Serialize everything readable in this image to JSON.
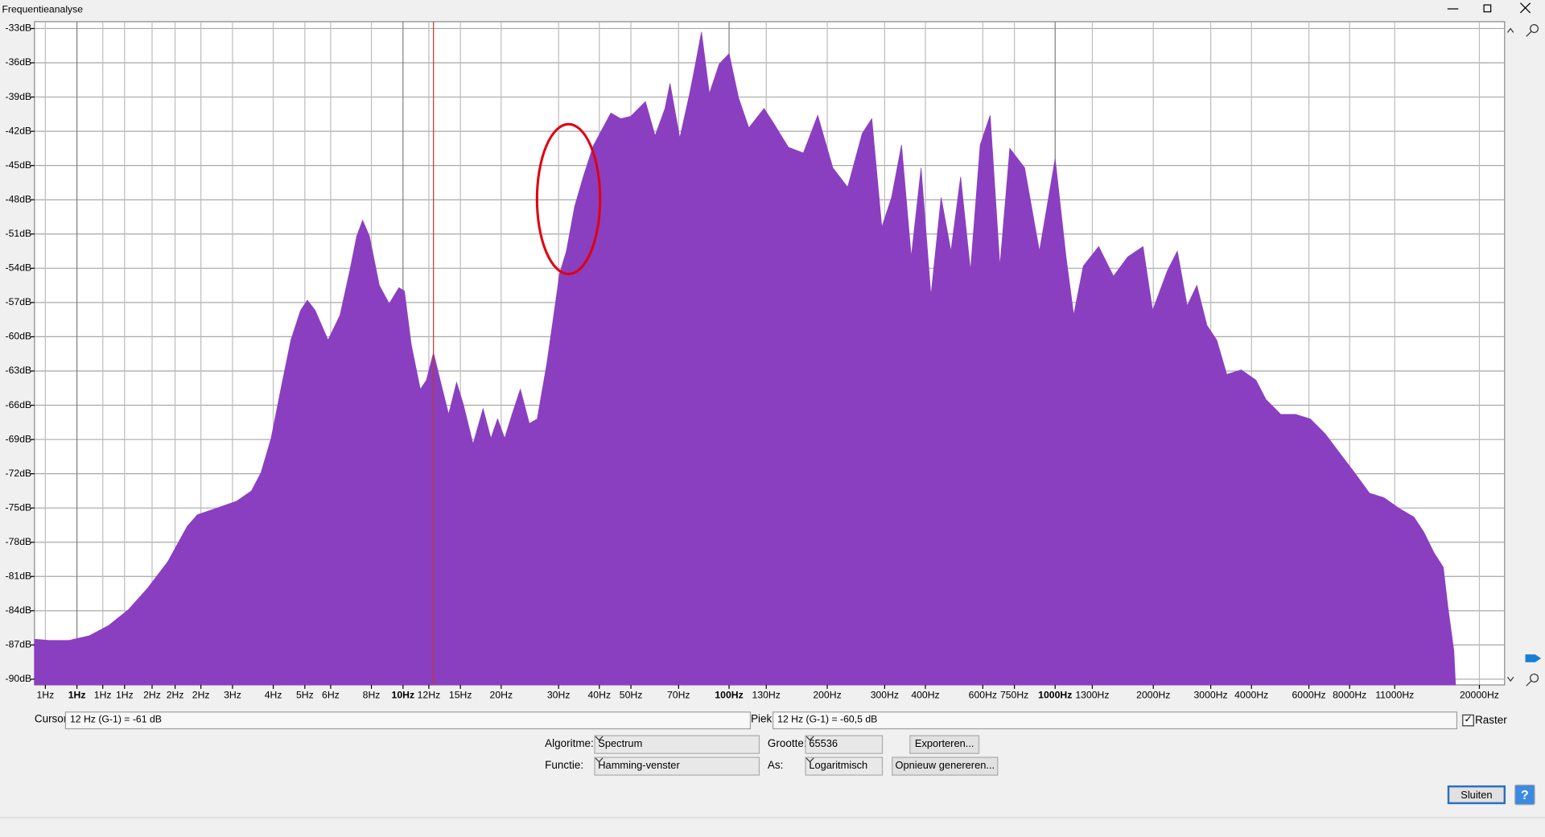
{
  "window": {
    "title": "Frequentieanalyse"
  },
  "chart_data": {
    "type": "area",
    "xscale": "log",
    "color": "#8a3fc0",
    "grid": true,
    "xlim": [
      0.741,
      23900
    ],
    "ylim": [
      -90.5,
      -32.4
    ],
    "xticks": [
      {
        "value": 0.8,
        "label": "1Hz"
      },
      {
        "value": 1,
        "label": "1Hz"
      },
      {
        "value": 1.2,
        "label": "1Hz"
      },
      {
        "value": 1.4,
        "label": "1Hz"
      },
      {
        "value": 1.7,
        "label": "2Hz"
      },
      {
        "value": 2,
        "label": "2Hz"
      },
      {
        "value": 2.4,
        "label": "2Hz"
      },
      {
        "value": 3,
        "label": "3Hz"
      },
      {
        "value": 4,
        "label": "4Hz"
      },
      {
        "value": 5,
        "label": "5Hz"
      },
      {
        "value": 6,
        "label": "6Hz"
      },
      {
        "value": 8,
        "label": "8Hz"
      },
      {
        "value": 10,
        "label": "10Hz"
      },
      {
        "value": 12,
        "label": "12Hz"
      },
      {
        "value": 15,
        "label": "15Hz"
      },
      {
        "value": 20,
        "label": "20Hz"
      },
      {
        "value": 30,
        "label": "30Hz"
      },
      {
        "value": 40,
        "label": "40Hz"
      },
      {
        "value": 50,
        "label": "50Hz"
      },
      {
        "value": 70,
        "label": "70Hz"
      },
      {
        "value": 100,
        "label": "100Hz"
      },
      {
        "value": 130,
        "label": "130Hz"
      },
      {
        "value": 200,
        "label": "200Hz"
      },
      {
        "value": 300,
        "label": "300Hz"
      },
      {
        "value": 400,
        "label": "400Hz"
      },
      {
        "value": 600,
        "label": "600Hz"
      },
      {
        "value": 750,
        "label": "750Hz"
      },
      {
        "value": 1000,
        "label": "1000Hz"
      },
      {
        "value": 1300,
        "label": "1300Hz"
      },
      {
        "value": 2000,
        "label": "2000Hz"
      },
      {
        "value": 3000,
        "label": "3000Hz"
      },
      {
        "value": 4000,
        "label": "4000Hz"
      },
      {
        "value": 6000,
        "label": "6000Hz"
      },
      {
        "value": 8000,
        "label": "8000Hz"
      },
      {
        "value": 11000,
        "label": "11000Hz"
      },
      {
        "value": 20000,
        "label": "20000Hz"
      }
    ],
    "yticks": [
      {
        "value": -33,
        "label": "-33dB"
      },
      {
        "value": -36,
        "label": "-36dB"
      },
      {
        "value": -39,
        "label": "-39dB"
      },
      {
        "value": -42,
        "label": "-42dB"
      },
      {
        "value": -45,
        "label": "-45dB"
      },
      {
        "value": -48,
        "label": "-48dB"
      },
      {
        "value": -51,
        "label": "-51dB"
      },
      {
        "value": -54,
        "label": "-54dB"
      },
      {
        "value": -57,
        "label": "-57dB"
      },
      {
        "value": -60,
        "label": "-60dB"
      },
      {
        "value": -63,
        "label": "-63dB"
      },
      {
        "value": -66,
        "label": "-66dB"
      },
      {
        "value": -69,
        "label": "-69dB"
      },
      {
        "value": -72,
        "label": "-72dB"
      },
      {
        "value": -75,
        "label": "-75dB"
      },
      {
        "value": -78,
        "label": "-78dB"
      },
      {
        "value": -81,
        "label": "-81dB"
      },
      {
        "value": -84,
        "label": "-84dB"
      },
      {
        "value": -87,
        "label": "-87dB"
      },
      {
        "value": -90,
        "label": "-90dB"
      }
    ],
    "cursor_frequency": 12.4,
    "x": [
      0.741,
      0.823,
      0.946,
      1.09,
      1.25,
      1.44,
      1.65,
      1.9,
      2.18,
      2.34,
      2.69,
      3.09,
      3.43,
      3.67,
      3.94,
      4.22,
      4.53,
      4.85,
      5.09,
      5.38,
      5.89,
      6.41,
      6.87,
      7.21,
      7.52,
      7.89,
      8.46,
      9.07,
      9.72,
      10.1,
      10.6,
      11.3,
      11.8,
      12.4,
      13.0,
      13.8,
      14.6,
      15.3,
      16.4,
      17.6,
      18.6,
      19.5,
      20.5,
      21.6,
      22.9,
      24.4,
      25.8,
      27.6,
      29.0,
      30.2,
      31.7,
      33.6,
      35.7,
      38.3,
      40.5,
      43.4,
      46.5,
      49.9,
      55.4,
      59.3,
      63.6,
      65.9,
      70.6,
      75.7,
      78.4,
      82.3,
      87.0,
      93.3,
      100,
      107,
      115,
      128,
      137,
      152,
      169,
      187,
      208,
      231,
      256,
      274,
      294,
      315,
      338,
      362,
      388,
      416,
      447,
      479,
      513,
      550,
      589,
      632,
      677,
      726,
      806,
      895,
      1000,
      1080,
      1140,
      1220,
      1360,
      1510,
      1670,
      1860,
      1990,
      2210,
      2370,
      2540,
      2720,
      2920,
      3130,
      3360,
      3720,
      4130,
      4430,
      4920,
      5460,
      6060,
      6730,
      7460,
      8280,
      9200,
      10200,
      11300,
      12600,
      13500,
      14500,
      15500,
      16000,
      16700,
      16900
    ],
    "values": [
      -86.5,
      -86.6,
      -86.6,
      -86.2,
      -85.3,
      -83.9,
      -82.0,
      -79.7,
      -76.6,
      -75.6,
      -75.0,
      -74.4,
      -73.5,
      -71.9,
      -68.9,
      -64.6,
      -60.3,
      -57.7,
      -56.8,
      -57.7,
      -60.3,
      -58.1,
      -54.2,
      -51.2,
      -49.8,
      -51.2,
      -55.5,
      -57.1,
      -55.7,
      -56.0,
      -60.7,
      -64.6,
      -63.8,
      -61.4,
      -63.8,
      -66.8,
      -64.0,
      -65.9,
      -69.4,
      -66.3,
      -68.9,
      -67.2,
      -68.9,
      -66.8,
      -64.6,
      -67.6,
      -67.2,
      -62.4,
      -58.1,
      -54.5,
      -52.5,
      -48.6,
      -46.0,
      -43.3,
      -42.0,
      -40.4,
      -40.9,
      -40.7,
      -39.4,
      -42.4,
      -40.0,
      -37.8,
      -42.6,
      -38.7,
      -36.5,
      -33.3,
      -38.7,
      -36.1,
      -35.2,
      -39.1,
      -41.7,
      -40.0,
      -41.3,
      -43.4,
      -43.9,
      -40.6,
      -45.2,
      -46.9,
      -42.2,
      -40.9,
      -50.4,
      -47.8,
      -43.2,
      -53.0,
      -45.2,
      -56.4,
      -47.8,
      -52.5,
      -46.0,
      -54.2,
      -43.2,
      -40.6,
      -53.8,
      -43.5,
      -45.2,
      -52.5,
      -44.4,
      -53.0,
      -58.1,
      -53.8,
      -52.1,
      -54.7,
      -53.0,
      -52.1,
      -57.7,
      -54.2,
      -52.5,
      -57.3,
      -55.5,
      -59.0,
      -60.3,
      -63.3,
      -62.9,
      -63.8,
      -65.5,
      -66.8,
      -66.8,
      -67.2,
      -68.5,
      -70.2,
      -71.9,
      -73.7,
      -74.1,
      -75.0,
      -75.8,
      -77.1,
      -78.9,
      -80.2,
      -83.6,
      -87.5,
      -90.5
    ]
  },
  "controls": {
    "cursor_label": "Cursor:",
    "cursor_value": "12 Hz (G-1) = -61 dB",
    "peak_label": "Piek:",
    "peak_value": "12 Hz (G-1) = -60,5 dB",
    "grid_label": "Raster",
    "algorithm_label": "Algoritme:",
    "algorithm": "Spectrum",
    "size_label": "Grootte:",
    "size": "65536",
    "export": "Exporteren...",
    "function_label": "Functie:",
    "function": "Hamming-venster",
    "axis_label": "As:",
    "axis": "Logaritmisch",
    "regenerate": "Opnieuw genereren...",
    "close": "Sluiten",
    "help": "?"
  }
}
